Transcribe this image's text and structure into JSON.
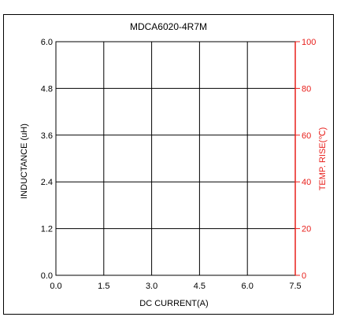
{
  "chart_data": {
    "type": "line",
    "title": "MDCA6020-4R7M",
    "xlabel": "DC CURRENT(A)",
    "ylabel": "INDUCTANCE (uH)",
    "y2label": "TEMP. RISE(℃)",
    "xlim": [
      0,
      7.5
    ],
    "ylim": [
      0,
      6.0
    ],
    "y2lim": [
      0,
      100
    ],
    "x_ticks": [
      "0.0",
      "1.5",
      "3.0",
      "4.5",
      "6.0",
      "7.5"
    ],
    "y_ticks": [
      "0.0",
      "1.2",
      "2.4",
      "3.6",
      "4.8",
      "6.0"
    ],
    "y2_ticks": [
      "0",
      "20",
      "40",
      "60",
      "80",
      "100"
    ],
    "grid": true,
    "series": []
  },
  "colors": {
    "frame": "#000000",
    "grid": "#000000",
    "secondary_axis": "#e8201c",
    "text": "#000000"
  }
}
